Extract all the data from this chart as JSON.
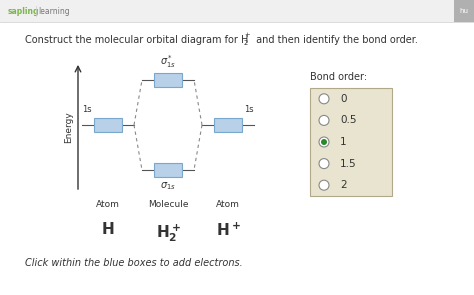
{
  "overall_bg": "#ffffff",
  "header_bg": "#f0f0f0",
  "header_line_color": "#cccccc",
  "logo_sapling_color": "#7ab648",
  "logo_learning_color": "#777777",
  "corner_bg": "#b0b0b0",
  "corner_text": "hu",
  "title_line1": "Construct the molecular orbital diagram for H",
  "title_sub": "+",
  "title_sub2": "2",
  "title_line2": " and then identify the bond order.",
  "text_color": "#333333",
  "box_color": "#b8d0e8",
  "box_edge_color": "#7aa8cc",
  "dashed_color": "#888888",
  "line_color": "#555555",
  "arrow_color": "#333333",
  "bond_box_bg": "#e8e4d0",
  "bond_box_edge": "#b0a888",
  "radio_empty_edge": "#888888",
  "radio_selected_fill": "#2a8a2a",
  "radio_selected_edge": "#2a8a2a",
  "bond_order_label": "Bond order:",
  "bond_order_options": [
    "0",
    "0.5",
    "1",
    "1.5",
    "2"
  ],
  "selected_option": 2,
  "instruction": "Click within the blue boxes to add electrons.",
  "atom_left_label": "Atom",
  "molecule_label": "Molecule",
  "atom_right_label": "Atom",
  "h_left": "H",
  "h2_plus": "H$_2^+$",
  "h_plus": "H$^+$",
  "energy_label": "Energy",
  "label_1s_left": "1s",
  "label_1s_right": "1s",
  "sigma_star_label": "$\\sigma^*_{1s}$",
  "sigma_label": "$\\sigma_{1s}$"
}
